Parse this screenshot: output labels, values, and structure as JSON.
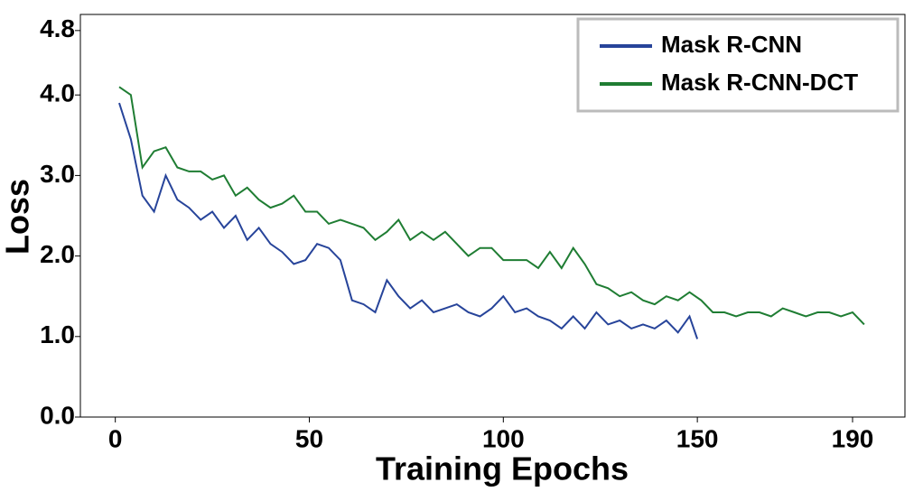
{
  "chart_data": {
    "type": "line",
    "xlabel": "Training Epochs",
    "ylabel": "Loss",
    "xlim": [
      -9,
      203.5
    ],
    "ylim": [
      0,
      5
    ],
    "xticks": [
      0,
      50,
      100,
      150,
      190
    ],
    "yticks": [
      {
        "value": 0,
        "label": "0.0"
      },
      {
        "value": 1,
        "label": "1.0"
      },
      {
        "value": 2,
        "label": "2.0"
      },
      {
        "value": 3,
        "label": "3.0"
      },
      {
        "value": 4,
        "label": "4.0"
      },
      {
        "value": 4.8,
        "label": "4.8"
      }
    ],
    "legend": "upper right",
    "series": [
      {
        "name": "Mask R-CNN",
        "color": "#27449a",
        "x": [
          1,
          4,
          7,
          10,
          13,
          16,
          19,
          22,
          25,
          28,
          31,
          34,
          37,
          40,
          43,
          46,
          49,
          52,
          55,
          58,
          61,
          64,
          67,
          70,
          73,
          76,
          79,
          82,
          85,
          88,
          91,
          94,
          97,
          100,
          103,
          106,
          109,
          112,
          115,
          118,
          121,
          124,
          127,
          130,
          133,
          136,
          139,
          142,
          145,
          148,
          150
        ],
        "values": [
          3.9,
          3.45,
          2.75,
          2.55,
          3.0,
          2.7,
          2.6,
          2.45,
          2.55,
          2.35,
          2.5,
          2.2,
          2.35,
          2.15,
          2.05,
          1.9,
          1.95,
          2.15,
          2.1,
          1.95,
          1.45,
          1.4,
          1.3,
          1.7,
          1.5,
          1.35,
          1.45,
          1.3,
          1.35,
          1.4,
          1.3,
          1.25,
          1.35,
          1.5,
          1.3,
          1.35,
          1.25,
          1.2,
          1.1,
          1.25,
          1.1,
          1.3,
          1.15,
          1.2,
          1.1,
          1.15,
          1.1,
          1.2,
          1.05,
          1.25,
          0.97
        ]
      },
      {
        "name": "Mask R-CNN-DCT",
        "color": "#1f7d33",
        "x": [
          1,
          4,
          7,
          10,
          13,
          16,
          19,
          22,
          25,
          28,
          31,
          34,
          37,
          40,
          43,
          46,
          49,
          52,
          55,
          58,
          61,
          64,
          67,
          70,
          73,
          76,
          79,
          82,
          85,
          88,
          91,
          94,
          97,
          100,
          103,
          106,
          109,
          112,
          115,
          118,
          121,
          124,
          127,
          130,
          133,
          136,
          139,
          142,
          145,
          148,
          151,
          154,
          157,
          160,
          163,
          166,
          169,
          172,
          175,
          178,
          181,
          184,
          187,
          190,
          193
        ],
        "values": [
          4.1,
          4.0,
          3.1,
          3.3,
          3.35,
          3.1,
          3.05,
          3.05,
          2.95,
          3.0,
          2.75,
          2.85,
          2.7,
          2.6,
          2.65,
          2.75,
          2.55,
          2.55,
          2.4,
          2.45,
          2.4,
          2.35,
          2.2,
          2.3,
          2.45,
          2.2,
          2.3,
          2.2,
          2.3,
          2.15,
          2.0,
          2.1,
          2.1,
          1.95,
          1.95,
          1.95,
          1.85,
          2.05,
          1.85,
          2.1,
          1.9,
          1.65,
          1.6,
          1.5,
          1.55,
          1.45,
          1.4,
          1.5,
          1.45,
          1.55,
          1.45,
          1.3,
          1.3,
          1.25,
          1.3,
          1.3,
          1.25,
          1.35,
          1.3,
          1.25,
          1.3,
          1.3,
          1.25,
          1.3,
          1.15
        ]
      }
    ]
  }
}
